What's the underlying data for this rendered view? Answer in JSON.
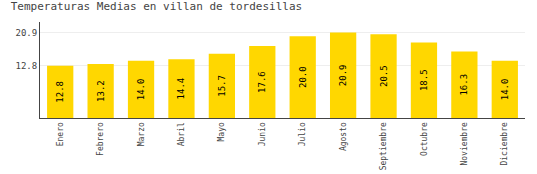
{
  "chart_data": {
    "type": "bar",
    "title": "Temperaturas Medias en villan de tordesillas",
    "categories": [
      "Enero",
      "Febrero",
      "Marzo",
      "Abril",
      "Mayo",
      "Junio",
      "Julio",
      "Agosto",
      "Septiembre",
      "Octubre",
      "Noviembre",
      "Diciembre"
    ],
    "values": [
      12.8,
      13.2,
      14.0,
      14.4,
      15.7,
      17.6,
      20.0,
      20.9,
      20.5,
      18.5,
      16.3,
      14.0
    ],
    "value_labels": [
      "12.8",
      "13.2",
      "14.0",
      "14.4",
      "15.7",
      "17.6",
      "20.0",
      "20.9",
      "20.5",
      "18.5",
      "16.3",
      "14.0"
    ],
    "color": "#FFD700",
    "ylim": [
      0,
      23.5
    ],
    "yticks": [
      12.8,
      20.9
    ],
    "grid": true,
    "data_labels": true
  }
}
